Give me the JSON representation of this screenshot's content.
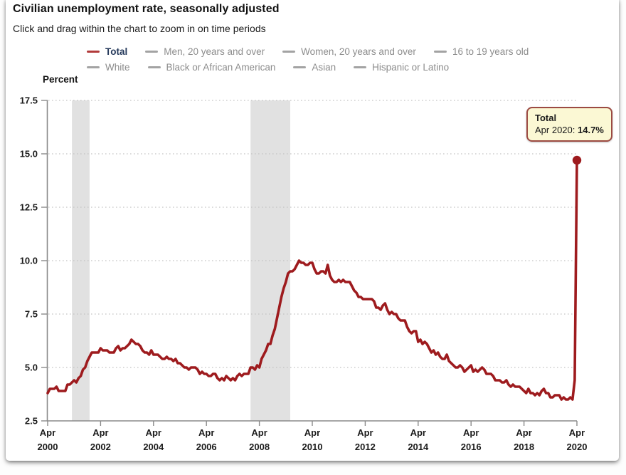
{
  "page": {
    "title": "Civilian unemployment rate, seasonally adjusted",
    "subtitle": "Click and drag within the chart to zoom in on time periods"
  },
  "legend": {
    "rows": [
      [
        {
          "label": "Total",
          "swatch_color": "#b23b3b",
          "active": true
        },
        {
          "label": "Men, 20 years and over",
          "swatch_color": "#a3a3a3",
          "active": false
        },
        {
          "label": "Women, 20 years and over",
          "swatch_color": "#a3a3a3",
          "active": false
        },
        {
          "label": "16 to 19 years old",
          "swatch_color": "#a3a3a3",
          "active": false
        }
      ],
      [
        {
          "label": "White",
          "swatch_color": "#a3a3a3",
          "active": false
        },
        {
          "label": "Black or African American",
          "swatch_color": "#a3a3a3",
          "active": false
        },
        {
          "label": "Asian",
          "swatch_color": "#a3a3a3",
          "active": false
        },
        {
          "label": "Hispanic or Latino",
          "swatch_color": "#a3a3a3",
          "active": false
        }
      ]
    ]
  },
  "tooltip": {
    "title": "Total",
    "date_label": "Apr 2020:",
    "value": "14.7%"
  },
  "colors": {
    "line": "#9e1b1e",
    "axis": "#8a8a8a",
    "gridline": "#c4c4c4",
    "recession_band": "#e1e1e1",
    "tooltip_bg": "#fbf8d4",
    "tooltip_border": "#9c4a42"
  },
  "chart_data": {
    "type": "line",
    "title": "Civilian unemployment rate, seasonally adjusted",
    "ylabel": "Percent",
    "xlabel": "",
    "ylim": [
      2.5,
      17.5
    ],
    "y_ticks": [
      2.5,
      5.0,
      7.5,
      10.0,
      12.5,
      15.0,
      17.5
    ],
    "x_ticks": [
      {
        "month": "Apr",
        "year": "2000"
      },
      {
        "month": "Apr",
        "year": "2002"
      },
      {
        "month": "Apr",
        "year": "2004"
      },
      {
        "month": "Apr",
        "year": "2006"
      },
      {
        "month": "Apr",
        "year": "2008"
      },
      {
        "month": "Apr",
        "year": "2010"
      },
      {
        "month": "Apr",
        "year": "2012"
      },
      {
        "month": "Apr",
        "year": "2014"
      },
      {
        "month": "Apr",
        "year": "2016"
      },
      {
        "month": "Apr",
        "year": "2018"
      },
      {
        "month": "Apr",
        "year": "2020"
      }
    ],
    "frequency": "monthly",
    "x_start": "2000-04",
    "x_end": "2020-04",
    "grid": "dotted-horizontal",
    "legend_position": "top",
    "recessions": [
      {
        "start": "2001-03",
        "end": "2001-11"
      },
      {
        "start": "2007-12",
        "end": "2009-06"
      }
    ],
    "series": [
      {
        "name": "Total",
        "color": "#9e1b1e",
        "values": [
          3.8,
          4.0,
          4.0,
          4.0,
          4.1,
          3.9,
          3.9,
          3.9,
          3.9,
          4.2,
          4.2,
          4.3,
          4.4,
          4.3,
          4.5,
          4.6,
          4.9,
          5.0,
          5.3,
          5.5,
          5.7,
          5.7,
          5.7,
          5.7,
          5.9,
          5.8,
          5.8,
          5.8,
          5.7,
          5.7,
          5.7,
          5.9,
          6.0,
          5.8,
          5.9,
          5.9,
          6.0,
          6.1,
          6.3,
          6.2,
          6.1,
          6.1,
          6.0,
          5.8,
          5.7,
          5.7,
          5.6,
          5.8,
          5.6,
          5.6,
          5.6,
          5.5,
          5.4,
          5.4,
          5.5,
          5.4,
          5.4,
          5.3,
          5.4,
          5.2,
          5.2,
          5.1,
          5.0,
          5.0,
          4.9,
          5.0,
          5.0,
          5.0,
          4.9,
          4.7,
          4.8,
          4.7,
          4.7,
          4.6,
          4.6,
          4.7,
          4.7,
          4.5,
          4.4,
          4.5,
          4.4,
          4.6,
          4.5,
          4.4,
          4.5,
          4.4,
          4.6,
          4.7,
          4.6,
          4.7,
          4.7,
          4.7,
          5.0,
          5.0,
          4.9,
          5.1,
          5.0,
          5.4,
          5.6,
          5.8,
          6.1,
          6.1,
          6.5,
          6.8,
          7.3,
          7.8,
          8.3,
          8.7,
          9.0,
          9.4,
          9.5,
          9.5,
          9.6,
          9.8,
          10.0,
          9.9,
          9.9,
          9.8,
          9.8,
          9.9,
          9.9,
          9.6,
          9.4,
          9.4,
          9.5,
          9.5,
          9.4,
          9.8,
          9.3,
          9.1,
          9.0,
          9.0,
          9.1,
          9.0,
          9.1,
          9.0,
          9.0,
          9.0,
          8.8,
          8.6,
          8.5,
          8.3,
          8.3,
          8.2,
          8.2,
          8.2,
          8.2,
          8.2,
          8.1,
          7.8,
          7.8,
          7.7,
          7.9,
          8.0,
          7.7,
          7.5,
          7.6,
          7.5,
          7.5,
          7.3,
          7.2,
          7.2,
          7.2,
          6.9,
          6.7,
          6.6,
          6.7,
          6.7,
          6.2,
          6.3,
          6.1,
          6.2,
          6.1,
          5.9,
          5.7,
          5.8,
          5.6,
          5.7,
          5.5,
          5.4,
          5.4,
          5.6,
          5.3,
          5.2,
          5.1,
          5.0,
          5.0,
          5.1,
          5.0,
          4.8,
          4.9,
          5.0,
          5.1,
          4.8,
          4.9,
          4.8,
          4.9,
          5.0,
          4.9,
          4.7,
          4.7,
          4.7,
          4.6,
          4.4,
          4.4,
          4.4,
          4.3,
          4.3,
          4.4,
          4.2,
          4.1,
          4.2,
          4.1,
          4.1,
          4.1,
          4.0,
          3.9,
          3.8,
          4.0,
          3.8,
          3.8,
          3.7,
          3.8,
          3.7,
          3.9,
          4.0,
          3.8,
          3.8,
          3.6,
          3.6,
          3.7,
          3.7,
          3.7,
          3.5,
          3.6,
          3.5,
          3.5,
          3.6,
          3.5,
          4.4,
          14.7
        ]
      }
    ],
    "end_point": {
      "date": "Apr 2020",
      "value": 14.7
    }
  }
}
